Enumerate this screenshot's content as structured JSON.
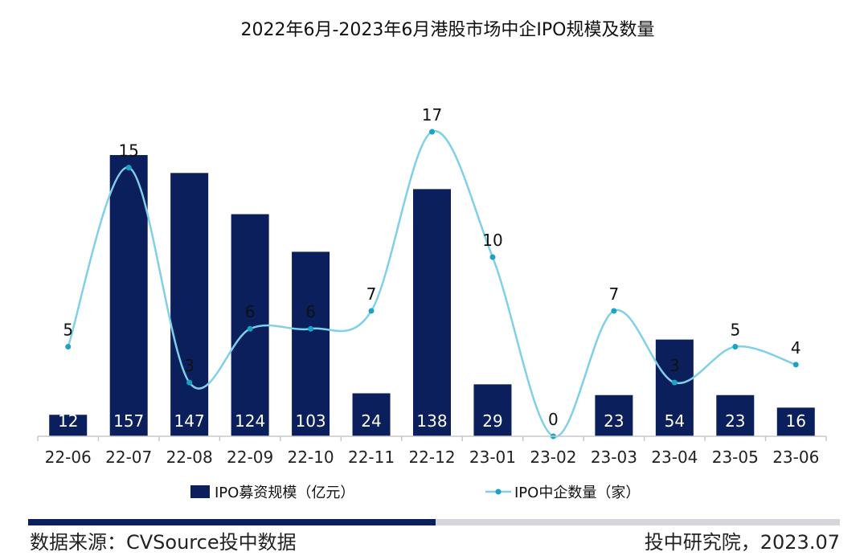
{
  "chart_data": {
    "type": "bar",
    "title": "2022年6月-2023年6月港股市场中企IPO规模及数量",
    "categories": [
      "22-06",
      "22-07",
      "22-08",
      "22-09",
      "22-10",
      "22-11",
      "22-12",
      "23-01",
      "23-02",
      "23-03",
      "23-04",
      "23-05",
      "23-06"
    ],
    "series": [
      {
        "name": "IPO募资规模（亿元）",
        "type": "bar",
        "color": "#0a1f5c",
        "values": [
          12,
          157,
          147,
          124,
          103,
          24,
          138,
          29,
          0,
          23,
          54,
          23,
          16
        ]
      },
      {
        "name": "IPO中企数量（家）",
        "type": "line",
        "smooth": true,
        "color": "#7fd0e8",
        "marker_color": "#1aa3c8",
        "values": [
          5,
          15,
          3,
          6,
          6,
          7,
          17,
          10,
          0,
          7,
          3,
          5,
          4
        ]
      }
    ],
    "legend": "bottom"
  },
  "footer": {
    "source": "数据来源：CVSource投中数据",
    "credit": "投中研究院，2023.07"
  }
}
